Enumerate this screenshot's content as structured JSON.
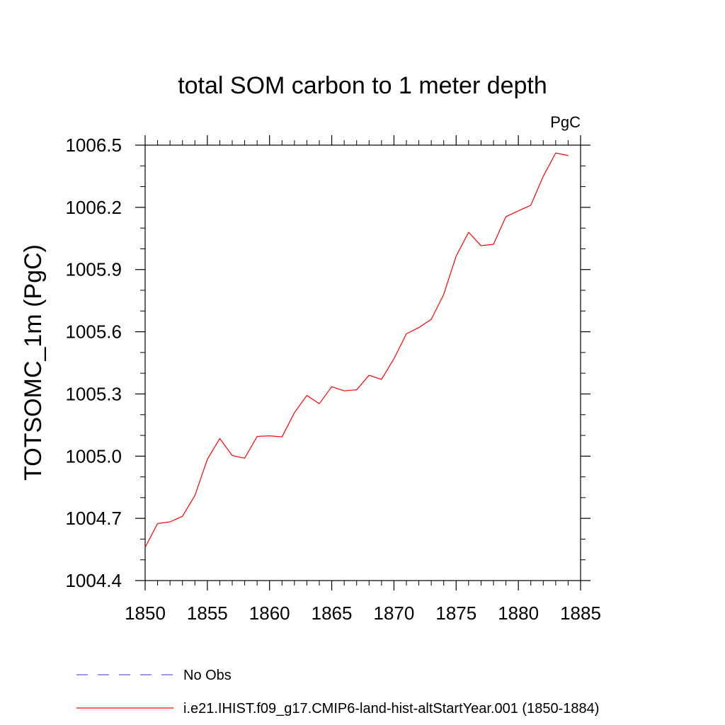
{
  "chart_data": {
    "type": "line",
    "title": "total SOM carbon to 1 meter depth",
    "units_label": "PgC",
    "xlabel": "",
    "ylabel": "TOTSOMC_1m  (PgC)",
    "xlim": [
      1850,
      1885
    ],
    "ylim": [
      1004.4,
      1006.5
    ],
    "x_ticks": [
      1850,
      1855,
      1860,
      1865,
      1870,
      1875,
      1880,
      1885
    ],
    "x_tick_labels": [
      "1850",
      "1855",
      "1860",
      "1865",
      "1870",
      "1875",
      "1880",
      "1885"
    ],
    "y_ticks": [
      1004.4,
      1004.7,
      1005.0,
      1005.3,
      1005.6,
      1005.9,
      1006.2,
      1006.5
    ],
    "y_tick_labels": [
      "1004.4",
      "1004.7",
      "1005.0",
      "1005.3",
      "1005.6",
      "1005.9",
      "1006.2",
      "1006.5"
    ],
    "grid": false,
    "legend_position": "bottom",
    "series": [
      {
        "name": "No Obs",
        "color": "#6a5acd",
        "dash": "dashed",
        "values": []
      },
      {
        "name": "i.e21.IHIST.f09_g17.CMIP6-land-hist-altStartYear.001 (1850-1884)",
        "color": "#ff0000",
        "dash": "solid",
        "x": [
          1850,
          1851,
          1852,
          1853,
          1854,
          1855,
          1856,
          1857,
          1858,
          1859,
          1860,
          1861,
          1862,
          1863,
          1864,
          1865,
          1866,
          1867,
          1868,
          1869,
          1870,
          1871,
          1872,
          1873,
          1874,
          1875,
          1876,
          1877,
          1878,
          1879,
          1880,
          1881,
          1882,
          1883,
          1884
        ],
        "values": [
          1004.56,
          1004.675,
          1004.683,
          1004.71,
          1004.81,
          1004.985,
          1005.085,
          1005.003,
          1004.99,
          1005.095,
          1005.098,
          1005.093,
          1005.21,
          1005.293,
          1005.253,
          1005.335,
          1005.315,
          1005.32,
          1005.39,
          1005.37,
          1005.47,
          1005.59,
          1005.62,
          1005.66,
          1005.78,
          1005.965,
          1006.08,
          1006.015,
          1006.022,
          1006.155,
          1006.183,
          1006.21,
          1006.35,
          1006.462,
          1006.45
        ]
      }
    ]
  }
}
